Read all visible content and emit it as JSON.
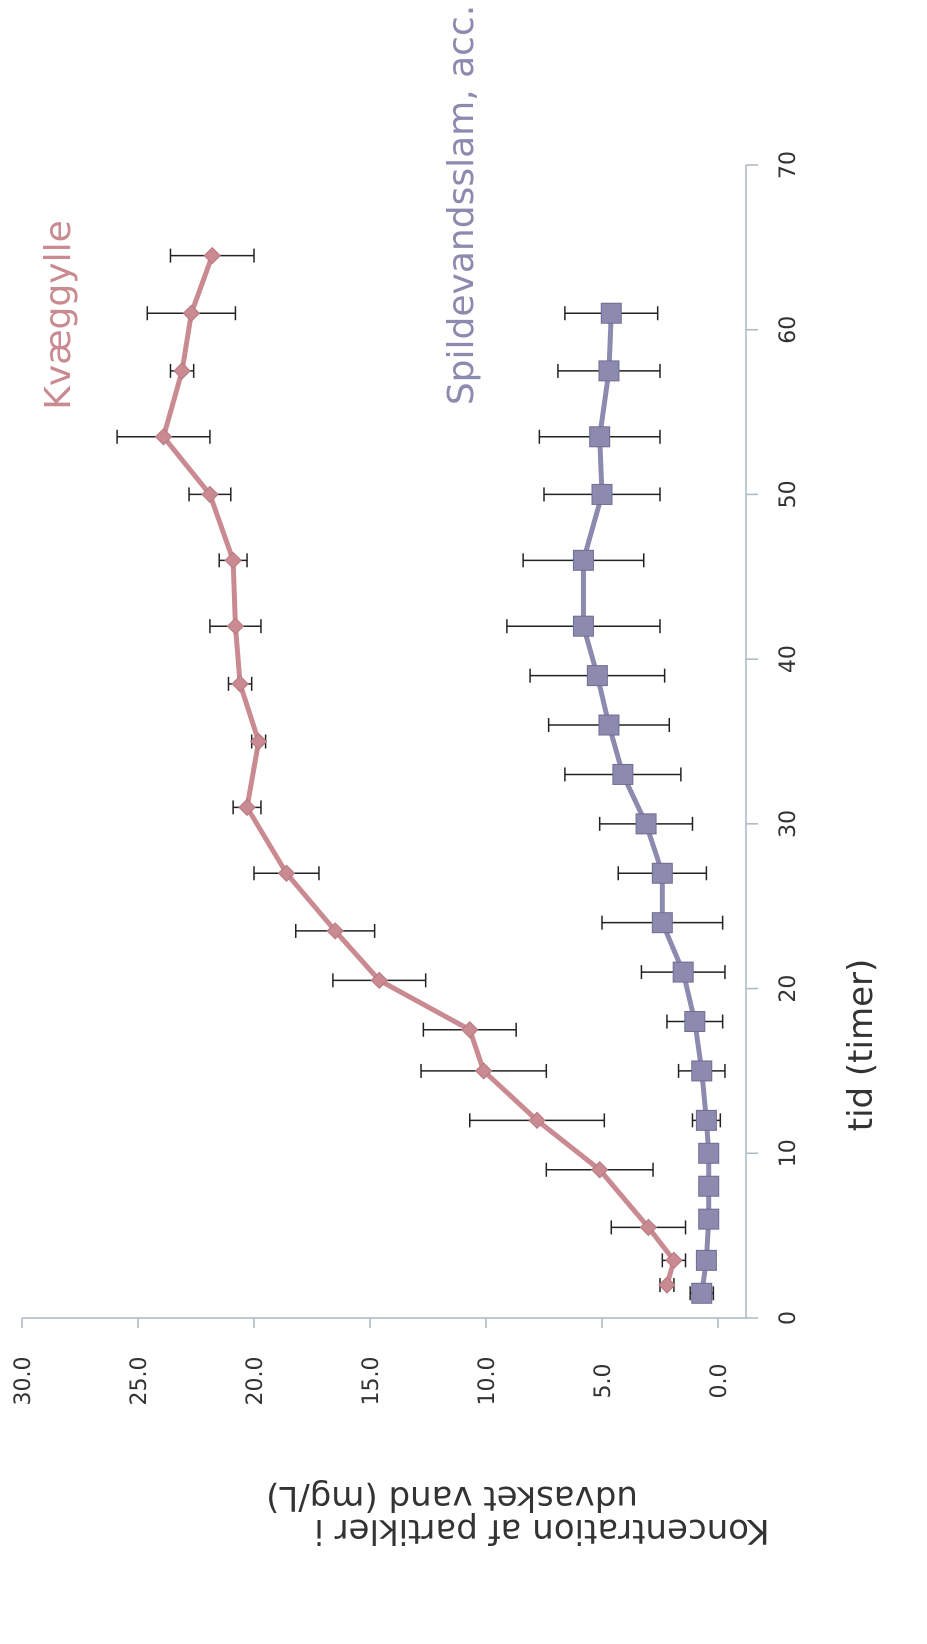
{
  "chart_data": {
    "type": "line",
    "orientation": "rotated-90-cw",
    "xlabel": "tid (timer)",
    "ylabel_line1": "Koncentration af partikler i",
    "ylabel_line2": "udvasket vand (mg/L)",
    "xlim": [
      0,
      70
    ],
    "ylim": [
      0,
      30
    ],
    "x_ticks": [
      "0",
      "10",
      "20",
      "30",
      "40",
      "50",
      "60",
      "70"
    ],
    "y_ticks": [
      "0.0",
      "5.0",
      "10.0",
      "15.0",
      "20.0",
      "25.0",
      "30.0"
    ],
    "grid": false,
    "series": [
      {
        "name": "Kvæggylle",
        "color": "#c98a91",
        "marker": "diamond",
        "label_position": "top-right",
        "x": [
          2,
          3.5,
          5.5,
          9,
          12,
          15,
          17.5,
          20.5,
          23.5,
          27,
          31,
          35,
          38.5,
          42,
          46,
          50,
          53.5,
          57.5,
          61,
          64.5
        ],
        "y": [
          2.2,
          1.9,
          3.0,
          5.1,
          7.8,
          10.1,
          10.7,
          14.6,
          16.5,
          18.6,
          20.3,
          19.8,
          20.6,
          20.8,
          20.9,
          21.9,
          23.9,
          23.1,
          22.7,
          21.8
        ],
        "err": [
          0.3,
          0.5,
          1.6,
          2.3,
          2.9,
          2.7,
          2.0,
          2.0,
          1.7,
          1.4,
          0.6,
          0.3,
          0.5,
          1.1,
          0.6,
          0.9,
          2.0,
          0.5,
          1.9,
          1.8
        ]
      },
      {
        "name": "Spildevandsslam, acc.",
        "color": "#8c8aae",
        "marker": "square",
        "label_position": "top-right",
        "x": [
          1.5,
          3.5,
          6,
          8,
          10,
          12,
          15,
          18,
          21,
          24,
          27,
          30,
          33,
          36,
          39,
          42,
          46,
          50,
          53.5,
          57.5,
          61
        ],
        "y": [
          0.7,
          0.5,
          0.4,
          0.4,
          0.4,
          0.5,
          0.7,
          1.0,
          1.5,
          2.4,
          2.4,
          3.1,
          4.1,
          4.7,
          5.2,
          5.8,
          5.8,
          5.0,
          5.1,
          4.7,
          4.6
        ],
        "err": [
          0.5,
          0.4,
          0.3,
          0.4,
          0.4,
          0.6,
          1.0,
          1.2,
          1.8,
          2.6,
          1.9,
          2.0,
          2.5,
          2.6,
          2.9,
          3.3,
          2.6,
          2.5,
          2.6,
          2.2,
          2.0
        ]
      }
    ]
  }
}
